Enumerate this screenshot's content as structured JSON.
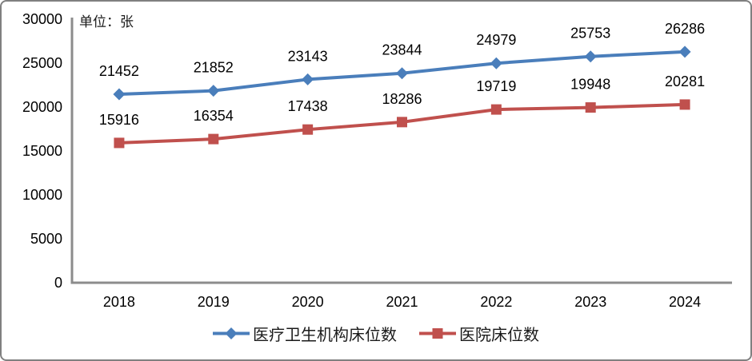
{
  "chart_data": {
    "type": "line",
    "unit_label": "单位：张",
    "categories": [
      "2018",
      "2019",
      "2020",
      "2021",
      "2022",
      "2023",
      "2024"
    ],
    "series": [
      {
        "name": "医疗卫生机构床位数",
        "values": [
          21452,
          21852,
          23143,
          23844,
          24979,
          25753,
          26286
        ],
        "color": "#4A7EBB",
        "marker": "diamond"
      },
      {
        "name": "医院床位数",
        "values": [
          15916,
          16354,
          17438,
          18286,
          19719,
          19948,
          20281
        ],
        "color": "#C0504D",
        "marker": "square"
      }
    ],
    "ylim": [
      0,
      30000
    ],
    "yticks": [
      0,
      5000,
      10000,
      15000,
      20000,
      25000,
      30000
    ],
    "grid": false,
    "data_labels": true,
    "legend_position": "bottom"
  },
  "colors": {
    "axis": "#8C8C8C",
    "label": "#000000",
    "border": "#808080",
    "background": "#FFFFFF"
  }
}
